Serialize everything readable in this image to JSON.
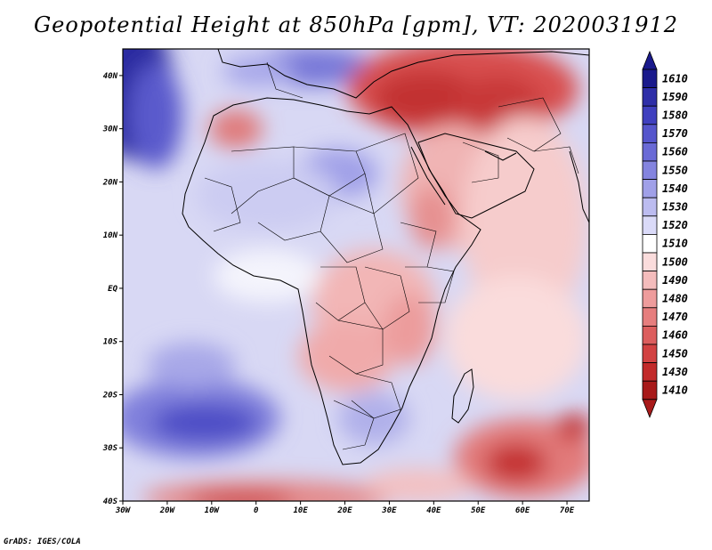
{
  "title": "Geopotential Height at 850hPa [gpm], VT: 2020031912",
  "credit": "GrADS: IGES/COLA",
  "map": {
    "lon_labels": [
      "30W",
      "20W",
      "10W",
      "0",
      "10E",
      "20E",
      "30E",
      "40E",
      "50E",
      "60E",
      "70E"
    ],
    "lat_labels": [
      "40N",
      "30N",
      "20N",
      "10N",
      "EQ",
      "10S",
      "20S",
      "30S",
      "40S"
    ],
    "lon_range": [
      -30,
      75
    ],
    "lat_range": [
      -40,
      45
    ]
  },
  "colorbar": {
    "levels": [
      "1610",
      "1590",
      "1580",
      "1570",
      "1560",
      "1550",
      "1540",
      "1530",
      "1520",
      "1510",
      "1500",
      "1490",
      "1480",
      "1470",
      "1460",
      "1450",
      "1430",
      "1410"
    ],
    "colors": [
      "#1a1a8c",
      "#2e2ea8",
      "#3f3fbf",
      "#5555cc",
      "#6a6ad6",
      "#8484df",
      "#a0a0e8",
      "#bcbcf0",
      "#dadaf8",
      "#ffffff",
      "#fadcdc",
      "#f4bcbc",
      "#ee9c9c",
      "#e67e7e",
      "#dc5e5e",
      "#d24242",
      "#c22a2a",
      "#a81a1a"
    ]
  }
}
